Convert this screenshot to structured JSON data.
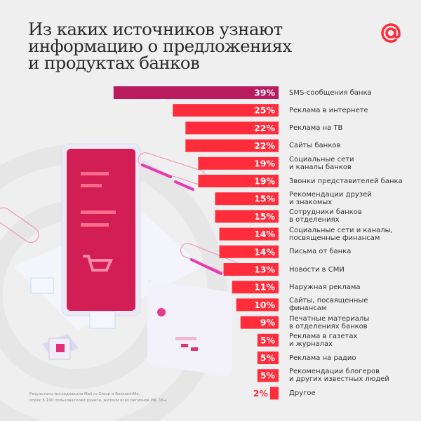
{
  "title_lines": [
    "Из каких источников узнают",
    "информацию о предложениях",
    "и продуктах банков"
  ],
  "logo": "mail-ru-at-logo",
  "colors": {
    "highlight": "#b81c5f",
    "bar": "#ff2c3c",
    "text": "#333333",
    "background": "#efefef"
  },
  "chart_data": {
    "type": "bar",
    "orientation": "horizontal",
    "title": "Из каких источников узнают информацию о предложениях и продуктах банков",
    "categories": [
      [
        "SMS-сообщения банка"
      ],
      [
        "Реклама в интернете"
      ],
      [
        "Реклама на ТВ"
      ],
      [
        "Сайты банков"
      ],
      [
        "Социальные сети",
        "и каналы банков"
      ],
      [
        "Звонки представителей банка"
      ],
      [
        "Рекомендации друзей",
        "и знакомых"
      ],
      [
        "Сотрудники банков",
        "в отделениях"
      ],
      [
        "Социальные сети и каналы,",
        "посвященные финансам"
      ],
      [
        "Письма от банка"
      ],
      [
        "Новости в СМИ"
      ],
      [
        "Наружная реклама"
      ],
      [
        "Сайты, посвященные",
        "финансам"
      ],
      [
        "Печатные материалы",
        "в отделениях банков"
      ],
      [
        "Реклама в газетах",
        "и журналах"
      ],
      [
        "Реклама на радио"
      ],
      [
        "Рекомендации блогеров",
        "и других известных людей"
      ],
      [
        "Другое"
      ]
    ],
    "values": [
      39,
      25,
      22,
      22,
      19,
      19,
      15,
      15,
      14,
      14,
      13,
      11,
      10,
      9,
      5,
      5,
      5,
      2
    ],
    "value_labels": [
      "39%",
      "25%",
      "22%",
      "22%",
      "19%",
      "19%",
      "15%",
      "15%",
      "14%",
      "14%",
      "13%",
      "11%",
      "10%",
      "9%",
      "5%",
      "5%",
      "5%",
      "2%"
    ],
    "unit": "%",
    "highlight_index": 0,
    "grid": false
  },
  "footnote": [
    "Результаты исследования Mail.ru Group и ResearchMe,",
    "опрос 5 100 пользователей рунета, жители всех регионов РФ, 16+"
  ]
}
